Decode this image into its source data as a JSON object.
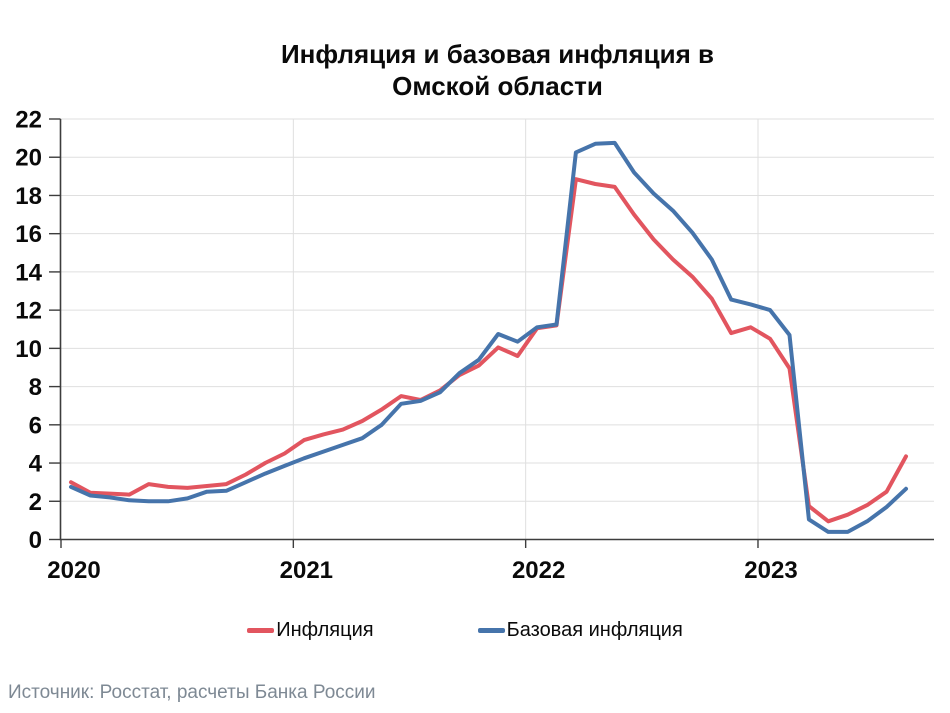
{
  "title": {
    "line1": "Инфляция и базовая инфляция в",
    "line2": "Омской области"
  },
  "source_note": "Источник: Росстат, расчеты Банка России",
  "colors": {
    "inflation_line": "#e2555f",
    "core_inflation_line": "#4674ab",
    "grid": "#dfdfdf",
    "axis": "#3d3d3d",
    "label": "#0a0a0a",
    "source_text": "#7e8994",
    "background": "#ffffff"
  },
  "chart_data": {
    "type": "line",
    "title": "Инфляция и базовая инфляция в Омской области",
    "xlabel": "",
    "ylabel": "",
    "x_ticks": [
      "2020",
      "2021",
      "2022",
      "2023"
    ],
    "y_ticks": [
      0,
      2,
      4,
      6,
      8,
      10,
      12,
      14,
      16,
      18,
      20,
      22
    ],
    "ylim": [
      0,
      22
    ],
    "grid": true,
    "legend_position": "bottom",
    "months": [
      "2020-01",
      "2020-02",
      "2020-03",
      "2020-04",
      "2020-05",
      "2020-06",
      "2020-07",
      "2020-08",
      "2020-09",
      "2020-10",
      "2020-11",
      "2020-12",
      "2021-01",
      "2021-02",
      "2021-03",
      "2021-04",
      "2021-05",
      "2021-06",
      "2021-07",
      "2021-08",
      "2021-09",
      "2021-10",
      "2021-11",
      "2021-12",
      "2022-01",
      "2022-02",
      "2022-03",
      "2022-04",
      "2022-05",
      "2022-06",
      "2022-07",
      "2022-08",
      "2022-09",
      "2022-10",
      "2022-11",
      "2022-12",
      "2023-01",
      "2023-02",
      "2023-03",
      "2023-04",
      "2023-05",
      "2023-06",
      "2023-07",
      "2023-08"
    ],
    "series": [
      {
        "name": "Инфляция",
        "color": "#e2555f",
        "values": [
          3.0,
          2.45,
          2.4,
          2.35,
          2.9,
          2.75,
          2.7,
          2.8,
          2.9,
          3.4,
          4.0,
          4.5,
          5.2,
          5.5,
          5.75,
          6.2,
          6.8,
          7.5,
          7.3,
          7.8,
          8.6,
          9.1,
          10.05,
          9.6,
          11.05,
          11.2,
          18.85,
          18.6,
          18.45,
          17.0,
          15.7,
          14.65,
          13.75,
          12.6,
          10.8,
          11.1,
          10.5,
          8.95,
          1.75,
          0.95,
          1.3,
          1.8,
          2.5,
          4.35
        ]
      },
      {
        "name": "Базовая инфляция",
        "color": "#4674ab",
        "values": [
          2.75,
          2.3,
          2.2,
          2.05,
          2.0,
          2.0,
          2.15,
          2.5,
          2.55,
          3.0,
          3.45,
          3.85,
          4.25,
          4.6,
          4.95,
          5.3,
          6.0,
          7.1,
          7.25,
          7.7,
          8.7,
          9.4,
          10.75,
          10.35,
          11.1,
          11.25,
          20.25,
          20.7,
          20.75,
          19.2,
          18.1,
          17.2,
          16.05,
          14.65,
          12.55,
          12.3,
          12.0,
          10.7,
          1.05,
          0.4,
          0.4,
          0.95,
          1.7,
          2.65
        ]
      }
    ]
  }
}
